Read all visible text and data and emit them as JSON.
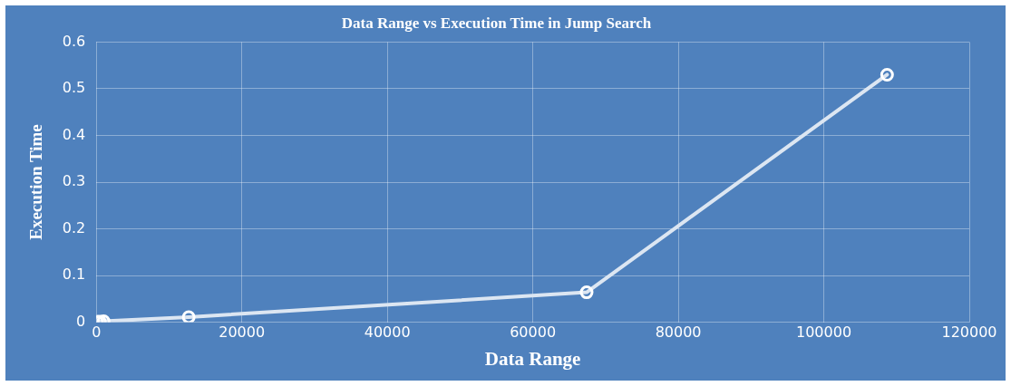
{
  "chart_data": {
    "type": "line",
    "title": "Data Range vs Execution Time in Jump Search",
    "xlabel": "Data Range",
    "ylabel": "Execution Time",
    "series": [
      {
        "color": "#dce6f2",
        "x": [
          100,
          500,
          1000,
          12700,
          67400,
          108700
        ],
        "values": [
          0.001,
          0.001,
          0.002,
          0.011,
          0.064,
          0.53
        ]
      }
    ],
    "xlim": [
      0,
      120000
    ],
    "xticks": [
      0,
      20000,
      40000,
      60000,
      80000,
      100000,
      120000
    ],
    "ylim": [
      0,
      0.6
    ],
    "yticks": [
      0,
      0.1,
      0.2,
      0.3,
      0.4,
      0.5,
      0.6
    ],
    "grid": true,
    "legend": false,
    "marker": "circle",
    "line_style": "solid"
  }
}
